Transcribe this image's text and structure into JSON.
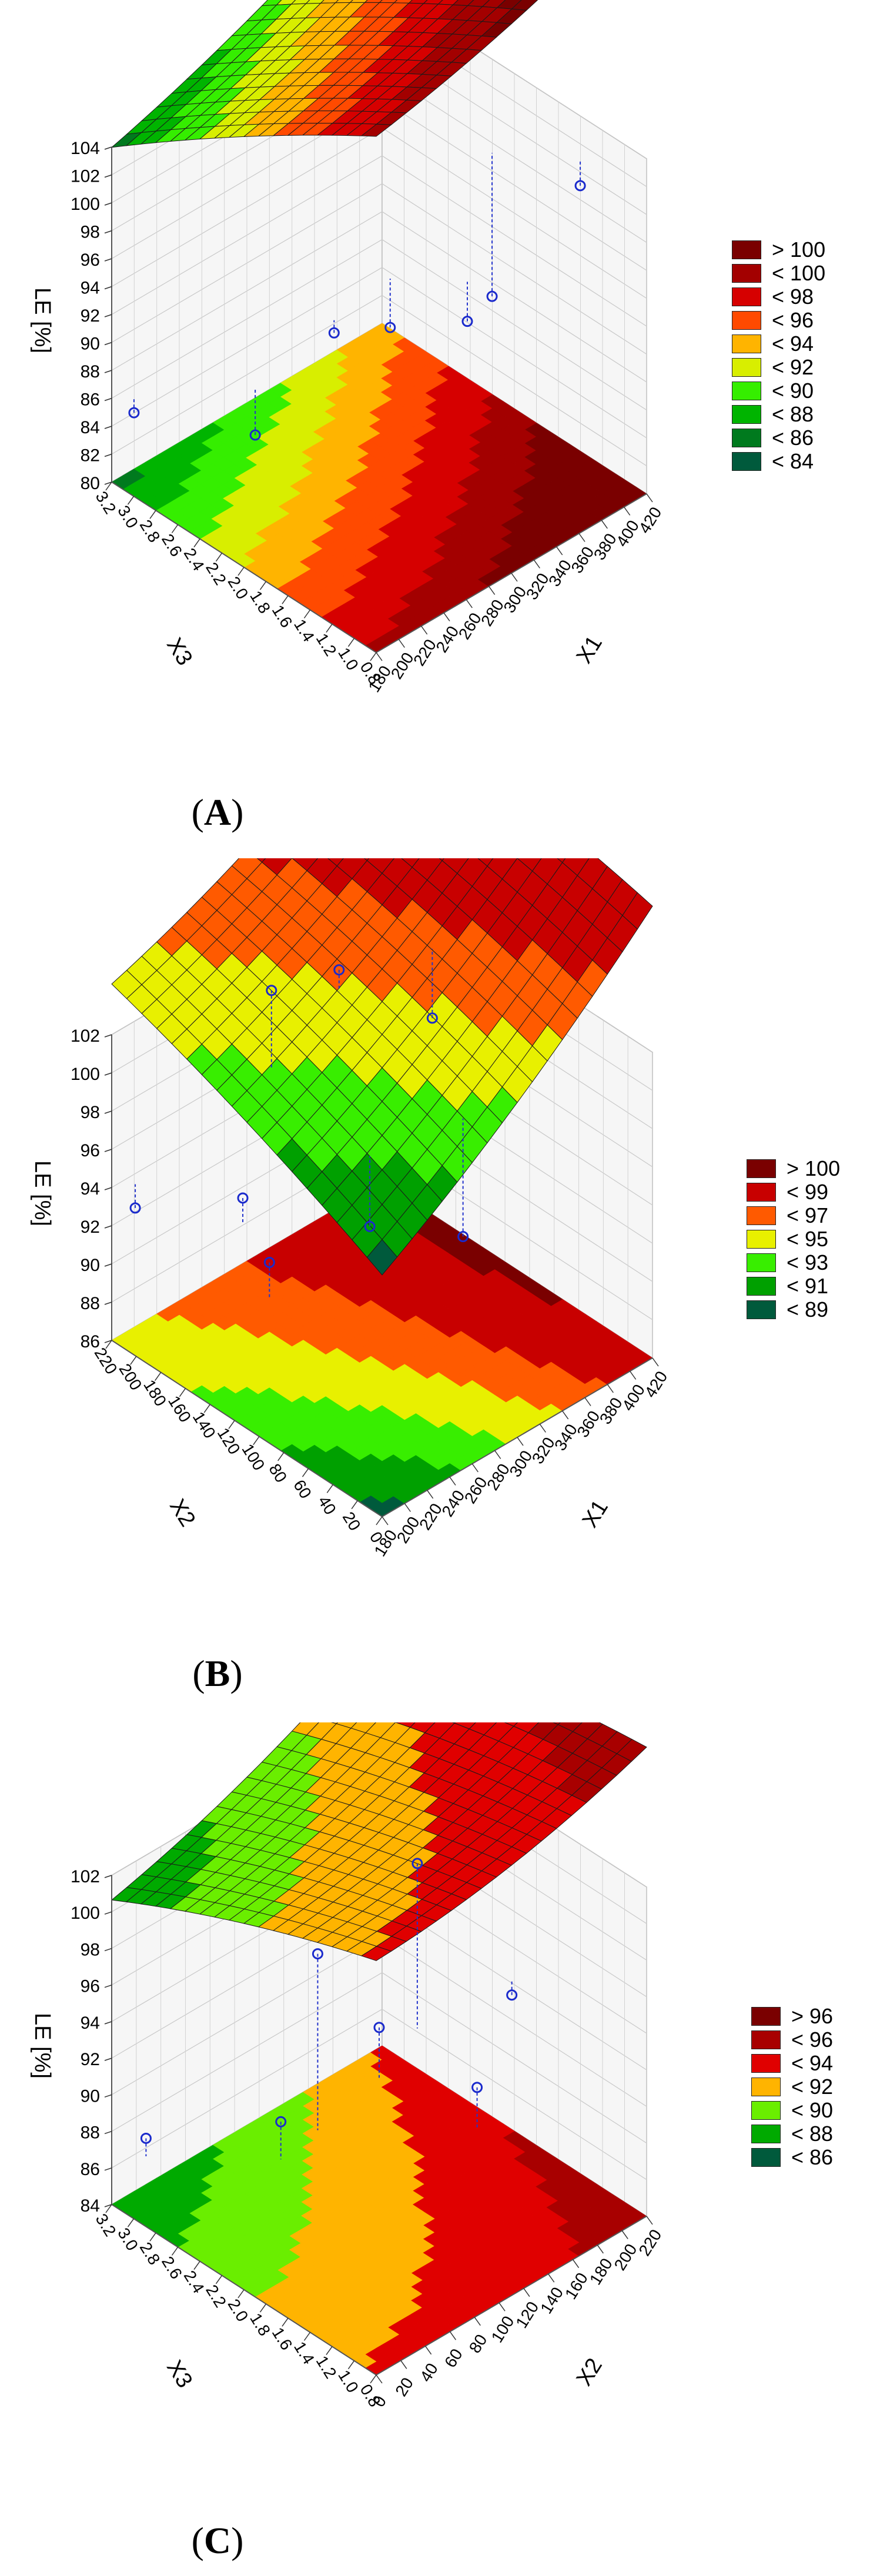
{
  "chart_data": [
    {
      "type": "surface",
      "panel_label": "A",
      "zlabel": "LE [%]",
      "x_label": "X1",
      "y_label": "X3",
      "x_ticks": [
        "180",
        "200",
        "220",
        "240",
        "260",
        "280",
        "300",
        "320",
        "340",
        "360",
        "380",
        "400",
        "420"
      ],
      "y_ticks": [
        "0.8",
        "1.0",
        "1.2",
        "1.4",
        "1.6",
        "1.8",
        "2.0",
        "2.2",
        "2.4",
        "2.6",
        "2.8",
        "3.0",
        "3.2"
      ],
      "z_ticks": [
        "80",
        "82",
        "84",
        "86",
        "88",
        "90",
        "92",
        "94",
        "96",
        "98",
        "100",
        "102",
        "104"
      ],
      "zlim": [
        80,
        104
      ],
      "grid": true,
      "legend_position": "right",
      "legend": [
        {
          "label": "> 100",
          "color": "#7a0000"
        },
        {
          "label": "< 100",
          "color": "#a30000"
        },
        {
          "label": "< 98",
          "color": "#d60000"
        },
        {
          "label": "< 96",
          "color": "#ff4a00"
        },
        {
          "label": "< 94",
          "color": "#ffb400"
        },
        {
          "label": "< 92",
          "color": "#d8ee00"
        },
        {
          "label": "< 90",
          "color": "#35ee00"
        },
        {
          "label": "< 88",
          "color": "#00b400"
        },
        {
          "label": "< 86",
          "color": "#007a1e"
        },
        {
          "label": "< 84",
          "color": "#005a3c"
        }
      ],
      "surface_corners": {
        "x_low_y_low": 98,
        "x_low_y_high": 85,
        "x_high_y_high": 93,
        "x_high_y_low": 104
      },
      "points": [
        {
          "x": 190,
          "y": 3.1,
          "z": 85
        },
        {
          "x": 190,
          "y": 2.0,
          "z": 89
        },
        {
          "x": 260,
          "y": 2.0,
          "z": 93
        },
        {
          "x": 300,
          "y": 1.9,
          "z": 92
        },
        {
          "x": 300,
          "y": 1.2,
          "z": 96
        },
        {
          "x": 410,
          "y": 2.1,
          "z": 88
        },
        {
          "x": 410,
          "y": 1.3,
          "z": 100
        }
      ]
    },
    {
      "type": "surface",
      "panel_label": "B",
      "zlabel": "LE [%]",
      "x_label": "X1",
      "y_label": "X2",
      "x_ticks": [
        "180",
        "200",
        "220",
        "240",
        "260",
        "280",
        "300",
        "320",
        "340",
        "360",
        "380",
        "400",
        "420"
      ],
      "y_ticks": [
        "0",
        "20",
        "40",
        "60",
        "80",
        "100",
        "120",
        "140",
        "160",
        "180",
        "200",
        "220"
      ],
      "z_ticks": [
        "86",
        "88",
        "90",
        "92",
        "94",
        "96",
        "98",
        "100",
        "102"
      ],
      "zlim": [
        86,
        102
      ],
      "grid": true,
      "legend_position": "right",
      "legend": [
        {
          "label": "> 100",
          "color": "#7a0000"
        },
        {
          "label": "< 99",
          "color": "#c80000"
        },
        {
          "label": "< 97",
          "color": "#ff5a00"
        },
        {
          "label": "< 95",
          "color": "#e8f000"
        },
        {
          "label": "< 93",
          "color": "#38ee00"
        },
        {
          "label": "< 91",
          "color": "#00a000"
        },
        {
          "label": "< 89",
          "color": "#005a3c"
        }
      ],
      "surface_corners": {
        "x_low_y_low": 88,
        "x_low_y_high": 94,
        "x_high_y_high": 101,
        "x_high_y_low": 99
      },
      "points": [
        {
          "x": 190,
          "y": 210,
          "z": 93
        },
        {
          "x": 220,
          "y": 150,
          "z": 95
        },
        {
          "x": 200,
          "y": 110,
          "z": 94
        },
        {
          "x": 300,
          "y": 200,
          "z": 101
        },
        {
          "x": 300,
          "y": 120,
          "z": 92
        },
        {
          "x": 360,
          "y": 200,
          "z": 100
        },
        {
          "x": 410,
          "y": 170,
          "z": 97
        },
        {
          "x": 350,
          "y": 90,
          "z": 91
        }
      ]
    },
    {
      "type": "surface",
      "panel_label": "C",
      "zlabel": "LE [%]",
      "x_label": "X2",
      "y_label": "X3",
      "x_ticks": [
        "0",
        "20",
        "40",
        "60",
        "80",
        "100",
        "120",
        "140",
        "160",
        "180",
        "200",
        "220"
      ],
      "y_ticks": [
        "0.8",
        "1.0",
        "1.2",
        "1.4",
        "1.6",
        "1.8",
        "2.0",
        "2.2",
        "2.4",
        "2.6",
        "2.8",
        "3.0",
        "3.2"
      ],
      "z_ticks": [
        "84",
        "86",
        "88",
        "90",
        "92",
        "94",
        "96",
        "98",
        "100",
        "102"
      ],
      "zlim": [
        84,
        102
      ],
      "grid": true,
      "legend_position": "right",
      "legend": [
        {
          "label": "> 96",
          "color": "#7a0000"
        },
        {
          "label": "< 96",
          "color": "#a80000"
        },
        {
          "label": "< 94",
          "color": "#e00000"
        },
        {
          "label": "< 92",
          "color": "#ffb400"
        },
        {
          "label": "< 90",
          "color": "#6aee00"
        },
        {
          "label": "< 88",
          "color": "#00aa00"
        },
        {
          "label": "< 86",
          "color": "#005a3c"
        }
      ],
      "surface_corners": {
        "x_low_y_low": 92,
        "x_low_y_high": 86,
        "x_high_y_high": 92,
        "x_high_y_low": 95
      },
      "points": [
        {
          "x": 10,
          "y": 3.0,
          "z": 88
        },
        {
          "x": 30,
          "y": 2.0,
          "z": 92
        },
        {
          "x": 60,
          "y": 2.0,
          "z": 100
        },
        {
          "x": 110,
          "y": 2.0,
          "z": 94
        },
        {
          "x": 100,
          "y": 1.0,
          "z": 95
        },
        {
          "x": 150,
          "y": 2.1,
          "z": 101
        },
        {
          "x": 200,
          "y": 1.8,
          "z": 93
        }
      ]
    }
  ]
}
